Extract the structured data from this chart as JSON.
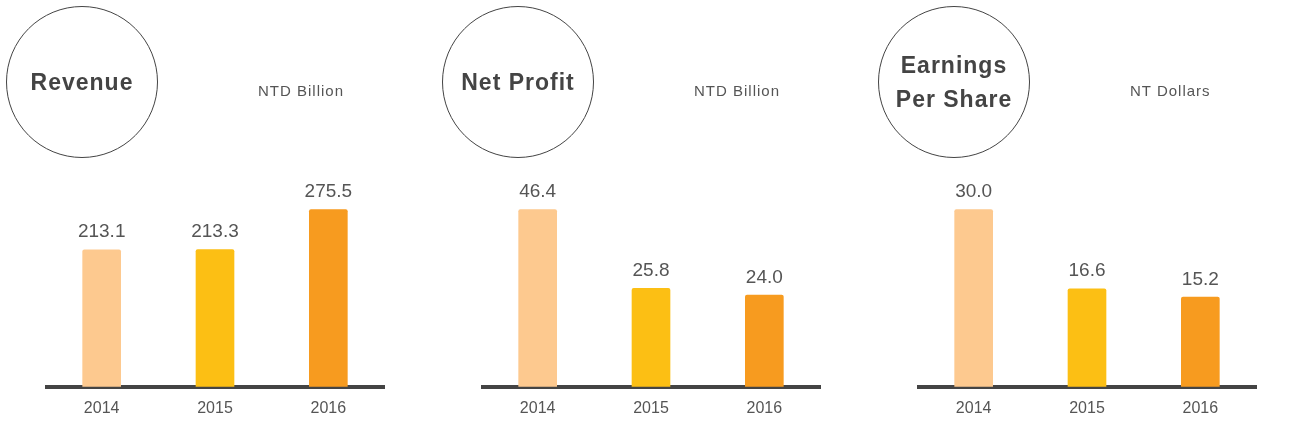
{
  "chart_data": [
    {
      "type": "bar",
      "title": "Revenue",
      "subtitle": "NTD Billion",
      "categories": [
        "2014",
        "2015",
        "2016"
      ],
      "values": [
        213.1,
        213.3,
        275.5
      ],
      "value_labels": [
        "213.1",
        "213.3",
        "275.5"
      ],
      "colors": [
        "#fdc98f",
        "#fcbf14",
        "#f79b1f"
      ],
      "grid": false,
      "legend": false
    },
    {
      "type": "bar",
      "title": "Net Profit",
      "subtitle": "NTD  Billion",
      "categories": [
        "2014",
        "2015",
        "2016"
      ],
      "values": [
        46.4,
        25.8,
        24
      ],
      "value_labels": [
        "46.4",
        "25.8",
        "24.0"
      ],
      "colors": [
        "#fdc98f",
        "#fcbf14",
        "#f79b1f"
      ],
      "grid": false,
      "legend": false
    },
    {
      "type": "bar",
      "title": "Earnings Per Share",
      "subtitle": "NT Dollars",
      "categories": [
        "2014",
        "2015",
        "2016"
      ],
      "values": [
        30,
        16.6,
        15.2
      ],
      "value_labels": [
        "30.0",
        "16.6",
        "15.2"
      ],
      "colors": [
        "#fdc98f",
        "#fcbf14",
        "#f79b1f"
      ],
      "grid": false,
      "legend": false
    }
  ]
}
